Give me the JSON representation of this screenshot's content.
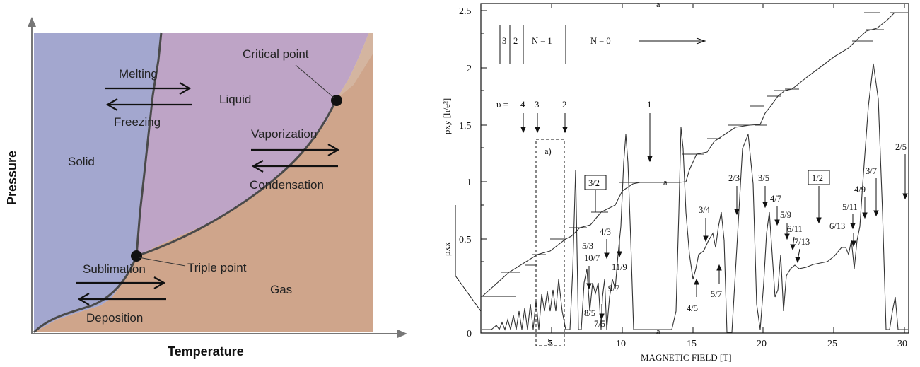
{
  "phase_diagram": {
    "axis_x": "Temperature",
    "axis_y": "Pressure",
    "regions": {
      "solid": "Solid",
      "liquid": "Liquid",
      "gas": "Gas"
    },
    "points": {
      "critical": "Critical point",
      "triple": "Triple point"
    },
    "transitions": {
      "melting": "Melting",
      "freezing": "Freezing",
      "vaporization": "Vaporization",
      "condensation": "Condensation",
      "sublimation": "Sublimation",
      "deposition": "Deposition"
    },
    "colors": {
      "solid": "#a3a7cf",
      "liquid": "#bea4c6",
      "gas": "#cfa58b",
      "line": "#4a4a4a"
    }
  },
  "qhe_plot": {
    "xlabel": "MAGNETIC FIELD [T]",
    "ylabel_rho_xy": "ρxy [h/e²]",
    "ylabel_rho_xx": "ρxx",
    "x_ticks": [
      "5",
      "10",
      "15",
      "20",
      "25",
      "30"
    ],
    "y_ticks": [
      "0",
      "0.5",
      "1",
      "1.5",
      "2",
      "2.5"
    ],
    "landau_legend": {
      "levels": [
        "3",
        "2"
      ],
      "n1": "N = 1",
      "n0": "N = 0"
    },
    "nu_label": "υ =",
    "integer_fills": [
      "4",
      "3",
      "2",
      "1"
    ],
    "inset_label": "a)",
    "inset_tick": "5",
    "boxed_fractions": [
      "3/2",
      "1/2"
    ],
    "fractions": [
      "5/3",
      "4/3",
      "10/7",
      "11/9",
      "8/5",
      "9/7",
      "7/5",
      "3/4",
      "2/3",
      "3/5",
      "4/7",
      "5/9",
      "6/11",
      "7/13",
      "4/5",
      "5/7",
      "6/13",
      "5/11",
      "4/9",
      "3/7",
      "2/5"
    ],
    "edge_marks": "a"
  }
}
